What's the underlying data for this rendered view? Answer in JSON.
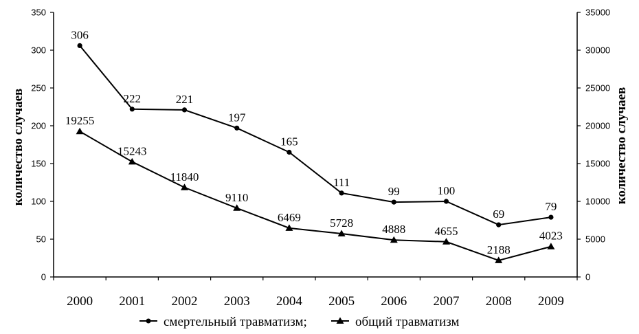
{
  "chart_data": {
    "type": "line",
    "categories": [
      "2000",
      "2001",
      "2002",
      "2003",
      "2004",
      "2005",
      "2006",
      "2007",
      "2008",
      "2009"
    ],
    "series": [
      {
        "name": "смертельный травматизм;",
        "axis": "left",
        "marker": "circle",
        "values": [
          306,
          222,
          221,
          197,
          165,
          111,
          99,
          100,
          69,
          79
        ]
      },
      {
        "name": "общий травматизм",
        "axis": "right",
        "marker": "triangle",
        "values": [
          19255,
          15243,
          11840,
          9110,
          6469,
          5728,
          4888,
          4655,
          2188,
          4023
        ]
      }
    ],
    "y_left": {
      "label": "количество случаев",
      "min": 0,
      "max": 350,
      "step": 50
    },
    "y_right": {
      "label": "количество случаев",
      "min": 0,
      "max": 35000,
      "step": 5000
    },
    "legend": "bottom",
    "grid": false
  }
}
